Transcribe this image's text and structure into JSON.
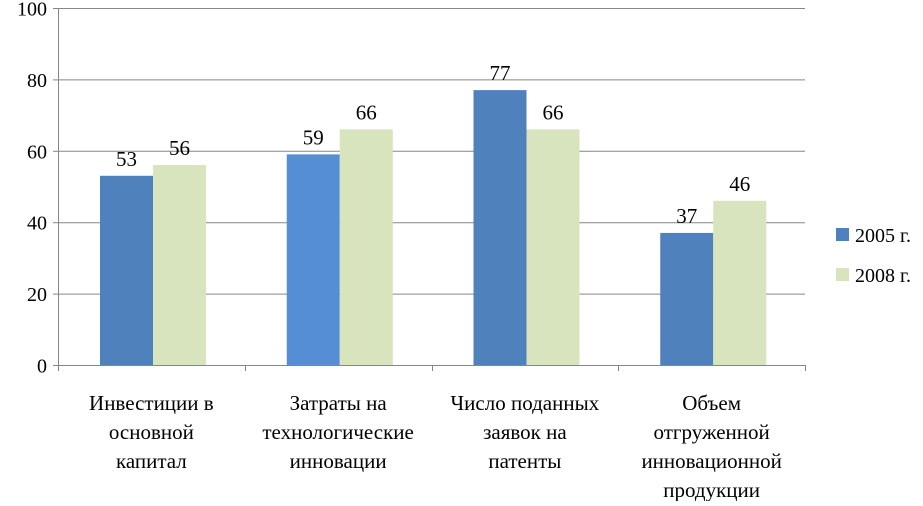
{
  "chart_data": {
    "type": "bar",
    "title": "",
    "xlabel": "",
    "ylabel": "",
    "ylim": [
      0,
      100
    ],
    "yticks": [
      "0",
      "20",
      "40",
      "60",
      "80",
      "100"
    ],
    "grid": true,
    "legend_position": "right",
    "categories": [
      [
        "Инвестиции в",
        "основной",
        "капитал"
      ],
      [
        "Затраты на",
        "технологические",
        "инновации"
      ],
      [
        "Число поданных",
        "заявок на",
        "патенты"
      ],
      [
        "Объем",
        "отгруженной",
        "инновационной",
        "продукции"
      ]
    ],
    "series": [
      {
        "name": "2005 г.",
        "values": [
          53,
          59,
          77,
          37
        ],
        "color": "#4F81BD",
        "point_colors": [
          "#4F81BD",
          "#558ED5",
          "#4F81BD",
          "#4F81BD"
        ]
      },
      {
        "name": "2008 г.",
        "values": [
          56,
          66,
          66,
          46
        ],
        "color": "#D7E4BD"
      }
    ],
    "data_labels": [
      [
        "53",
        "59",
        "77",
        "37"
      ],
      [
        "56",
        "66",
        "66",
        "46"
      ]
    ]
  }
}
